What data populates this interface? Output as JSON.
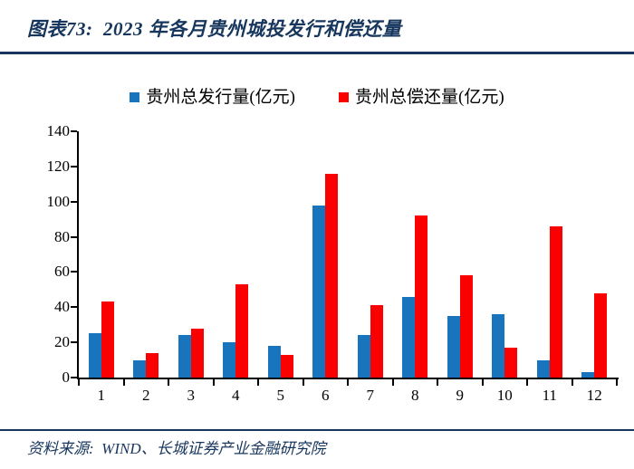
{
  "title": "图表73:  2023 年各月贵州城投发行和偿还量",
  "footer": {
    "source_label": "资料来源:  WIND、长城证券产业金融研究院"
  },
  "colors": {
    "heading": "#17365D",
    "axis": "#000000",
    "issuance": "#1874BC",
    "repayment": "#FB0000"
  },
  "chart_data": {
    "type": "bar",
    "title": "2023 年各月贵州城投发行和偿还量",
    "categories": [
      "1",
      "2",
      "3",
      "4",
      "5",
      "6",
      "7",
      "8",
      "9",
      "10",
      "11",
      "12"
    ],
    "series": [
      {
        "name": "贵州总发行量(亿元)",
        "color": "#1874BC",
        "values": [
          25,
          10,
          24,
          20,
          18,
          98,
          24,
          46,
          35,
          36,
          10,
          3
        ]
      },
      {
        "name": "贵州总偿还量(亿元)",
        "color": "#FB0000",
        "values": [
          43,
          14,
          28,
          53,
          13,
          116,
          41,
          92,
          58,
          17,
          86,
          48
        ]
      }
    ],
    "xlabel": "",
    "ylabel": "",
    "ylim": [
      0,
      140
    ],
    "ytick_step": 20,
    "yticks": [
      0,
      20,
      40,
      60,
      80,
      100,
      120,
      140
    ],
    "legend_position": "top-center",
    "grid": false
  }
}
